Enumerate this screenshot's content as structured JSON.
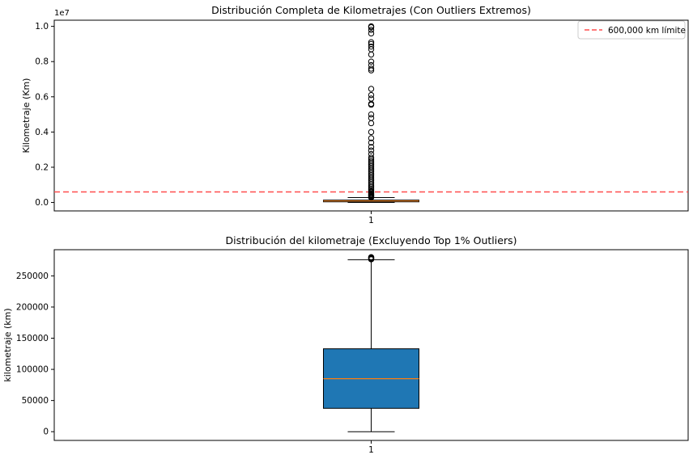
{
  "chart_data": [
    {
      "type": "box",
      "title": "Distribución Completa de Kilometrajes (Con Outliers Extremos)",
      "xlabel": "",
      "ylabel": "Kilometraje (Km)",
      "y_scale_label": "1e7",
      "x_ticks": [
        "1"
      ],
      "y_ticks": [
        "0.0",
        "0.2",
        "0.4",
        "0.6",
        "0.8",
        "1.0"
      ],
      "y_tick_values": [
        0,
        2000000,
        4000000,
        6000000,
        8000000,
        10000000
      ],
      "ylim": [
        -480000,
        10350000
      ],
      "box": {
        "q1": 37000,
        "median": 85000,
        "q3": 133000,
        "whisker_low": 0,
        "whisker_high": 276000
      },
      "outliers": [
        280000,
        320000,
        360000,
        400000,
        450000,
        500000,
        560000,
        620000,
        700000,
        780000,
        860000,
        950000,
        1050000,
        1150000,
        1250000,
        1350000,
        1450000,
        1550000,
        1650000,
        1750000,
        1850000,
        1950000,
        2050000,
        2150000,
        2250000,
        2350000,
        2450000,
        2550000,
        2750000,
        2950000,
        3150000,
        3400000,
        3650000,
        4000000,
        4500000,
        4800000,
        5000000,
        5550000,
        5600000,
        5900000,
        6100000,
        6450000,
        7500000,
        7600000,
        7800000,
        8000000,
        8400000,
        8700000,
        8850000,
        9000000,
        9100000,
        9600000,
        9800000,
        9950000,
        10000000
      ],
      "reference_line": {
        "value": 600000,
        "label": "600,000 km límite",
        "color": "#ff4d4d",
        "style": "dashed"
      },
      "legend_position": "top-right",
      "box_fill": "#1f77b4",
      "median_color": "#ff7f0e"
    },
    {
      "type": "box",
      "title": "Distribución del kilometraje (Excluyendo Top 1% Outliers)",
      "xlabel": "",
      "ylabel": "kilometraje (km)",
      "x_ticks": [
        "1"
      ],
      "y_ticks": [
        "0",
        "50000",
        "100000",
        "150000",
        "200000",
        "250000"
      ],
      "y_tick_values": [
        0,
        50000,
        100000,
        150000,
        200000,
        250000
      ],
      "ylim": [
        -14000,
        292000
      ],
      "box": {
        "q1": 37500,
        "median": 85000,
        "q3": 133000,
        "whisker_low": 0,
        "whisker_high": 276000
      },
      "outliers": [
        276500,
        277500,
        278500,
        279500,
        280000
      ],
      "box_fill": "#1f77b4",
      "median_color": "#ff7f0e"
    }
  ]
}
